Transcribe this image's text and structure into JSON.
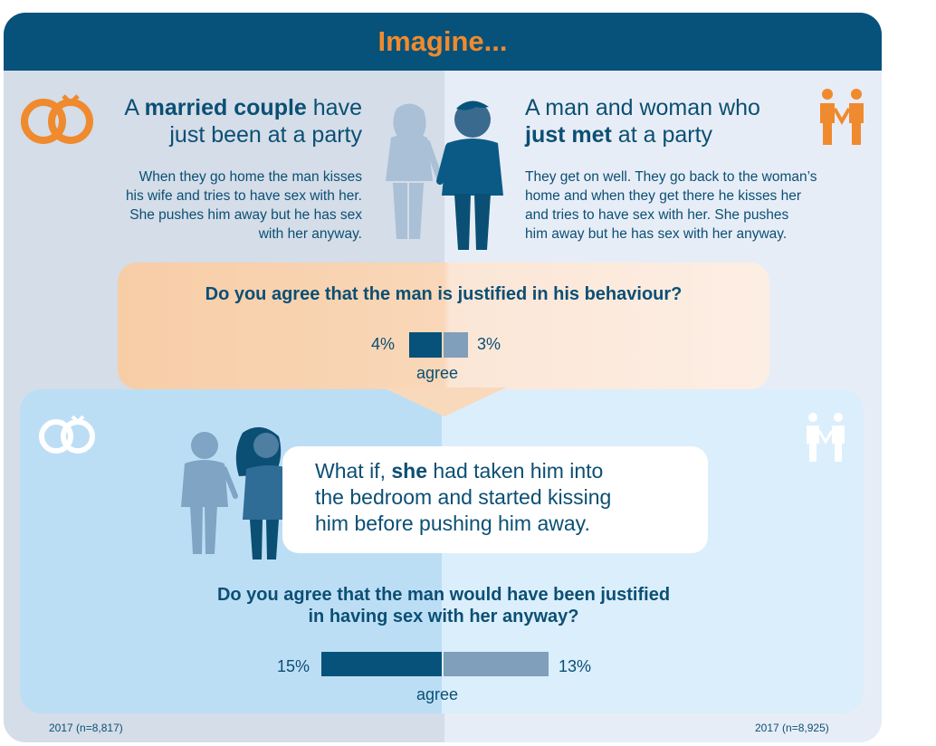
{
  "header": {
    "title": "Imagine..."
  },
  "left_scenario": {
    "title_pre": "A ",
    "title_bold": "married couple",
    "title_post": " have",
    "title_line2": "just been at a party",
    "text": [
      "When they go home the man kisses",
      "his wife and tries to have sex with her.",
      "She pushes him away but he has sex",
      "with her anyway."
    ]
  },
  "right_scenario": {
    "title_line1": "A man and woman who",
    "title_bold": "just met",
    "title_post": " at a party",
    "text": [
      "They get on well. They go back to the woman’s",
      "home and when they get there he kisses her",
      "and tries to have sex with her. She pushes",
      "him away but he has sex with her anyway."
    ]
  },
  "question1": {
    "text": "Do you agree that the man is justified in his behaviour?",
    "left_value_label": "4%",
    "right_value_label": "3%",
    "axis_label": "agree",
    "left_value": 4,
    "right_value": 3
  },
  "speech": {
    "line1_pre": "What if, ",
    "line1_bold": "she",
    "line1_post": " had taken him into",
    "line2": "the bedroom and started kissing",
    "line3": "him before pushing him away."
  },
  "question2": {
    "line1": "Do you agree that the man would have been justified",
    "line2": "in having sex with her anyway?",
    "left_value_label": "15%",
    "right_value_label": "13%",
    "axis_label": "agree",
    "left_value": 15,
    "right_value": 13
  },
  "footnotes": {
    "left": "2017 (n=8,817)",
    "right": "2017 (n=8,925)"
  },
  "colors": {
    "dark_blue": "#0b4f74",
    "bar_left": "#06527a",
    "bar_right": "#7f9fba",
    "orange": "#f08a2e"
  },
  "icons": [
    "rings-icon",
    "couple-icon",
    "couple-figures",
    "woman-man-figures"
  ]
}
